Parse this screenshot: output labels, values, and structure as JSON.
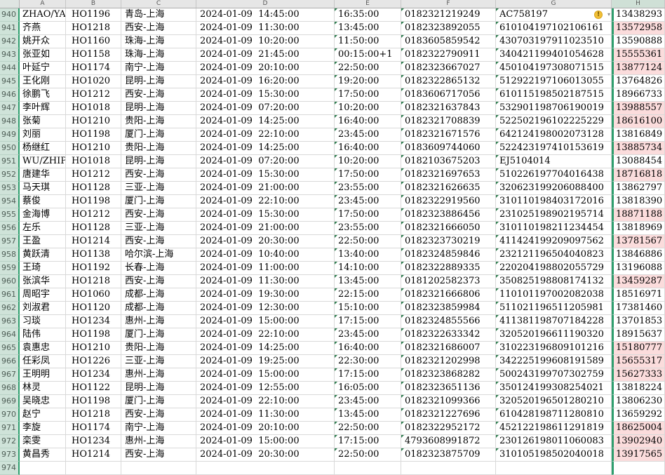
{
  "columns": [
    "A",
    "B",
    "C",
    "D",
    "E",
    "F",
    "G",
    "H"
  ],
  "icons": {
    "warning": "!",
    "dropdown": "▾"
  },
  "colors": {
    "selection_green": "#2f9e6e",
    "duplicate_highlight": "#fbdcdc",
    "warning_yellow": "#f2c037",
    "row_header_bg": "#cfe3d9",
    "header_bg": "#e6e6e6"
  },
  "rows": [
    {
      "num": "940",
      "name": "ZHAO/YAN",
      "flight": "HO1196",
      "route": "青岛-上海",
      "depart": "2024-01-09  14:45:00",
      "arrive": "16:35:00",
      "ticket": "0182321219249",
      "id": "AC758197",
      "phone": "13438293",
      "warn": true
    },
    {
      "num": "941",
      "name": "齐燕",
      "flight": "HO1218",
      "route": "西安-上海",
      "depart": "2024-01-09  11:30:00",
      "arrive": "13:45:00",
      "ticket": "0182323892055",
      "id": "610104197102106161",
      "phone": "13572958",
      "hl": true
    },
    {
      "num": "942",
      "name": "姚开众",
      "flight": "HO1160",
      "route": "珠海-上海",
      "depart": "2024-01-09  10:20:00",
      "arrive": "11:50:00",
      "ticket": "0183605859542",
      "id": "430703197911023510",
      "phone": "13590888"
    },
    {
      "num": "943",
      "name": "张亚如",
      "flight": "HO1158",
      "route": "珠海-上海",
      "depart": "2024-01-09  21:45:00",
      "arrive": "00:15:00+1",
      "ticket": "0182322790911",
      "id": "340421199401054628",
      "phone": "15555361",
      "hl": true
    },
    {
      "num": "944",
      "name": "叶延宁",
      "flight": "HO1174",
      "route": "南宁-上海",
      "depart": "2024-01-09  20:10:00",
      "arrive": "22:50:00",
      "ticket": "0182323667027",
      "id": "450104197308071515",
      "phone": "13877124",
      "hl": true
    },
    {
      "num": "945",
      "name": "王化刚",
      "flight": "HO1020",
      "route": "昆明-上海",
      "depart": "2024-01-09  16:20:00",
      "arrive": "19:20:00",
      "ticket": "0182322865132",
      "id": "512922197106013055",
      "phone": "13764826"
    },
    {
      "num": "946",
      "name": "徐鹏飞",
      "flight": "HO1212",
      "route": "西安-上海",
      "depart": "2024-01-09  15:30:00",
      "arrive": "17:50:00",
      "ticket": "0183606717056",
      "id": "610115198502187515",
      "phone": "18966733"
    },
    {
      "num": "947",
      "name": "李叶辉",
      "flight": "HO1018",
      "route": "昆明-上海",
      "depart": "2024-01-09  07:20:00",
      "arrive": "10:20:00",
      "ticket": "0182321637843",
      "id": "532901198706190019",
      "phone": "13988557",
      "hl": true
    },
    {
      "num": "948",
      "name": "张菊",
      "flight": "HO1210",
      "route": "贵阳-上海",
      "depart": "2024-01-09  14:25:00",
      "arrive": "16:40:00",
      "ticket": "0182321708839",
      "id": "522502196102225229",
      "phone": "18616100",
      "hl": true
    },
    {
      "num": "949",
      "name": "刘丽",
      "flight": "HO1198",
      "route": "厦门-上海",
      "depart": "2024-01-09  22:10:00",
      "arrive": "23:45:00",
      "ticket": "0182321671576",
      "id": "642124198002073128",
      "phone": "13816849"
    },
    {
      "num": "950",
      "name": "杨继红",
      "flight": "HO1210",
      "route": "贵阳-上海",
      "depart": "2024-01-09  14:25:00",
      "arrive": "16:40:00",
      "ticket": "0183609744060",
      "id": "522423197410153619",
      "phone": "13885734",
      "hl": true
    },
    {
      "num": "951",
      "name": "WU/ZHIPEN",
      "flight": "HO1018",
      "route": "昆明-上海",
      "depart": "2024-01-09  07:20:00",
      "arrive": "10:20:00",
      "ticket": "0182103675203",
      "id": "EJ5104014",
      "phone": "13088454"
    },
    {
      "num": "952",
      "name": "唐建华",
      "flight": "HO1212",
      "route": "西安-上海",
      "depart": "2024-01-09  15:30:00",
      "arrive": "17:50:00",
      "ticket": "0182321697653",
      "id": "510226197704016438",
      "phone": "18716818",
      "hl": true
    },
    {
      "num": "953",
      "name": "马天琪",
      "flight": "HO1128",
      "route": "三亚-上海",
      "depart": "2024-01-09  21:00:00",
      "arrive": "23:55:00",
      "ticket": "0182321626635",
      "id": "320623199206088400",
      "phone": "13862797"
    },
    {
      "num": "954",
      "name": "蔡俊",
      "flight": "HO1198",
      "route": "厦门-上海",
      "depart": "2024-01-09  22:10:00",
      "arrive": "23:45:00",
      "ticket": "0182322919560",
      "id": "310110198403172016",
      "phone": "13818390"
    },
    {
      "num": "955",
      "name": "金海博",
      "flight": "HO1212",
      "route": "西安-上海",
      "depart": "2024-01-09  15:30:00",
      "arrive": "17:50:00",
      "ticket": "0182323886456",
      "id": "231025198902195714",
      "phone": "18871188",
      "hl": true
    },
    {
      "num": "956",
      "name": "左乐",
      "flight": "HO1128",
      "route": "三亚-上海",
      "depart": "2024-01-09  21:00:00",
      "arrive": "23:55:00",
      "ticket": "0182321666050",
      "id": "310110198211234454",
      "phone": "13818969"
    },
    {
      "num": "957",
      "name": "王盈",
      "flight": "HO1214",
      "route": "西安-上海",
      "depart": "2024-01-09  20:30:00",
      "arrive": "22:50:00",
      "ticket": "0182323730219",
      "id": "411424199209097562",
      "phone": "13781567",
      "hl": true
    },
    {
      "num": "958",
      "name": "黄跃清",
      "flight": "HO1138",
      "route": "哈尔滨-上海",
      "depart": "2024-01-09  10:40:00",
      "arrive": "13:40:00",
      "ticket": "0182324859846",
      "id": "232121196504040823",
      "phone": "13846886"
    },
    {
      "num": "959",
      "name": "王琦",
      "flight": "HO1192",
      "route": "长春-上海",
      "depart": "2024-01-09  11:00:00",
      "arrive": "14:10:00",
      "ticket": "0182322889335",
      "id": "220204198802055729",
      "phone": "13196088"
    },
    {
      "num": "960",
      "name": "张滨华",
      "flight": "HO1218",
      "route": "西安-上海",
      "depart": "2024-01-09  11:30:00",
      "arrive": "13:45:00",
      "ticket": "0181202582373",
      "id": "350825198808174132",
      "phone": "13459287",
      "hl": true
    },
    {
      "num": "961",
      "name": "周昭宇",
      "flight": "HO1060",
      "route": "成都-上海",
      "depart": "2024-01-09  19:30:00",
      "arrive": "22:15:00",
      "ticket": "0182321666806",
      "id": "110101197002082038",
      "phone": "18516971"
    },
    {
      "num": "962",
      "name": "刘淑君",
      "flight": "HO1120",
      "route": "成都-上海",
      "depart": "2024-01-09  12:30:00",
      "arrive": "15:10:00",
      "ticket": "0182323859984",
      "id": "511021196511205981",
      "phone": "17381460"
    },
    {
      "num": "963",
      "name": "习琰",
      "flight": "HO1234",
      "route": "惠州-上海",
      "depart": "2024-01-09  15:00:00",
      "arrive": "17:15:00",
      "ticket": "0182324855566",
      "id": "411381198707184228",
      "phone": "13701853"
    },
    {
      "num": "964",
      "name": "陆伟",
      "flight": "HO1198",
      "route": "厦门-上海",
      "depart": "2024-01-09  22:10:00",
      "arrive": "23:45:00",
      "ticket": "0182322633342",
      "id": "320520196611190320",
      "phone": "18915637"
    },
    {
      "num": "965",
      "name": "袁惠忠",
      "flight": "HO1210",
      "route": "贵阳-上海",
      "depart": "2024-01-09  14:25:00",
      "arrive": "16:40:00",
      "ticket": "0182321686007",
      "id": "310223196809101216",
      "phone": "15180777",
      "hl": true
    },
    {
      "num": "966",
      "name": "任彩凤",
      "flight": "HO1226",
      "route": "三亚-上海",
      "depart": "2024-01-09  19:25:00",
      "arrive": "22:30:00",
      "ticket": "0182321202998",
      "id": "342225199608191589",
      "phone": "15655317",
      "hl": true
    },
    {
      "num": "967",
      "name": "王明明",
      "flight": "HO1234",
      "route": "惠州-上海",
      "depart": "2024-01-09  15:00:00",
      "arrive": "17:15:00",
      "ticket": "0182323868282",
      "id": "500243199707302759",
      "phone": "15627333",
      "hl": true
    },
    {
      "num": "968",
      "name": "林灵",
      "flight": "HO1122",
      "route": "昆明-上海",
      "depart": "2024-01-09  12:55:00",
      "arrive": "16:05:00",
      "ticket": "0182323651136",
      "id": "350124199308254021",
      "phone": "13818224"
    },
    {
      "num": "969",
      "name": "吴晓忠",
      "flight": "HO1198",
      "route": "厦门-上海",
      "depart": "2024-01-09  22:10:00",
      "arrive": "23:45:00",
      "ticket": "0182321099366",
      "id": "320520196501280210",
      "phone": "13806230"
    },
    {
      "num": "970",
      "name": "赵宁",
      "flight": "HO1218",
      "route": "西安-上海",
      "depart": "2024-01-09  11:30:00",
      "arrive": "13:45:00",
      "ticket": "0182321227696",
      "id": "610428198711280810",
      "phone": "13659292"
    },
    {
      "num": "971",
      "name": "李旋",
      "flight": "HO1174",
      "route": "南宁-上海",
      "depart": "2024-01-09  20:10:00",
      "arrive": "22:50:00",
      "ticket": "0182322952172",
      "id": "452122198611291819",
      "phone": "18625004",
      "hl": true
    },
    {
      "num": "972",
      "name": "栾雯",
      "flight": "HO1234",
      "route": "惠州-上海",
      "depart": "2024-01-09  15:00:00",
      "arrive": "17:15:00",
      "ticket": "4793608991872",
      "id": "230126198011060083",
      "phone": "13902940",
      "hl": true
    },
    {
      "num": "973",
      "name": "黄昌秀",
      "flight": "HO1214",
      "route": "西安-上海",
      "depart": "2024-01-09  20:30:00",
      "arrive": "22:50:00",
      "ticket": "0182323875709",
      "id": "310105198502040018",
      "phone": "13917565",
      "hl": true
    },
    {
      "num": "974",
      "name": "",
      "flight": "",
      "route": "",
      "depart": "",
      "arrive": "",
      "ticket": "",
      "id": "",
      "phone": ""
    }
  ]
}
